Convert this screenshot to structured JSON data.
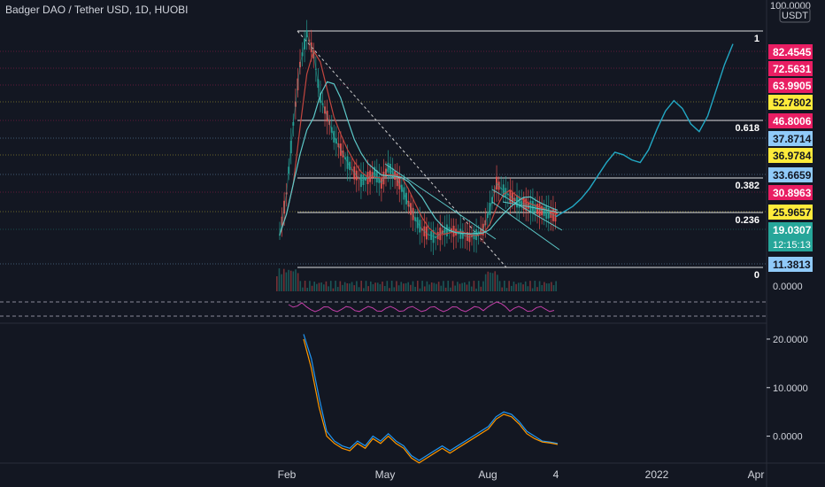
{
  "chart_title": "Badger DAO / Tether USD, 1D, HUOBI",
  "currency_label": "USDT",
  "top_axis_value": "100.0000",
  "colors": {
    "background": "#131722",
    "grid": "#2a2e39",
    "text": "#d1d4dc",
    "candle_up": "#26a69a",
    "candle_down": "#ef5350",
    "fib_line": "#ffffff",
    "projection": "#22a8c4",
    "trendline": "#5cc8c8",
    "ma_red": "#c2463f",
    "rsi": "#c23fa8",
    "macd": "#2196f3",
    "signal": "#ff9800"
  },
  "chart_data": [
    {
      "type": "line",
      "title": "Badger DAO / Tether USD, 1D, HUOBI",
      "x_tick_labels": [
        "Feb",
        "May",
        "Aug",
        "4",
        "2022",
        "Apr"
      ],
      "price_labels": [
        {
          "value": "82.4545",
          "color": "#e91e63"
        },
        {
          "value": "72.5631",
          "color": "#e91e63"
        },
        {
          "value": "63.9905",
          "color": "#e91e63"
        },
        {
          "value": "52.7802",
          "color": "#ffeb3b"
        },
        {
          "value": "46.8006",
          "color": "#e91e63"
        },
        {
          "value": "37.8714",
          "color": "#90caf9"
        },
        {
          "value": "36.9784",
          "color": "#ffeb3b"
        },
        {
          "value": "33.6659",
          "color": "#90caf9"
        },
        {
          "value": "30.8963",
          "color": "#e91e63"
        },
        {
          "value": "25.9657",
          "color": "#ffeb3b"
        },
        {
          "value": "19.0307",
          "color": "#26a69a"
        },
        {
          "value": "11.3813",
          "color": "#90caf9"
        }
      ],
      "countdown": "12:15:13",
      "zero_label": "0.0000",
      "fib_levels": [
        "1",
        "0.618",
        "0.382",
        "0.236",
        "0"
      ],
      "series": [
        {
          "values": [
            12,
            28,
            55,
            78,
            90,
            82,
            65,
            58,
            50,
            45,
            40,
            36,
            33,
            34,
            36,
            32,
            38,
            35,
            30,
            24,
            18,
            14,
            12,
            11,
            13,
            14,
            13,
            12,
            11,
            12,
            14,
            22,
            32,
            29,
            27,
            25,
            24,
            23,
            22,
            21,
            20,
            19
          ]
        },
        {
          "values": [
            19,
            21,
            23,
            26,
            30,
            35,
            40,
            44,
            43,
            41,
            40,
            45,
            53,
            60,
            64,
            61,
            55,
            52,
            58,
            68,
            78,
            86
          ]
        }
      ]
    },
    {
      "type": "line",
      "y_tick_labels": [
        "20.0000",
        "10.0000",
        "0.0000"
      ],
      "ylim": [
        -5,
        22
      ],
      "series": [
        {
          "values": [
            21,
            16,
            8,
            1,
            -1,
            -2,
            -2.5,
            -1,
            -2,
            0,
            -1,
            0.5,
            -1,
            -2,
            -4,
            -5,
            -4,
            -3,
            -2,
            -3,
            -2,
            -1,
            0,
            1,
            2,
            4,
            5,
            4.5,
            3,
            1,
            0,
            -1,
            -1.2,
            -1.5
          ]
        },
        {
          "values": [
            20,
            14,
            6,
            0,
            -1.5,
            -2.5,
            -3,
            -1.5,
            -2.5,
            -0.5,
            -1.5,
            0,
            -1.5,
            -2.5,
            -4.5,
            -5.5,
            -4.5,
            -3.5,
            -2.5,
            -3.5,
            -2.5,
            -1.5,
            -0.5,
            0.5,
            1.5,
            3.5,
            4.5,
            4,
            2.5,
            0.5,
            -0.5,
            -1.2,
            -1.4,
            -1.7
          ]
        }
      ]
    }
  ]
}
